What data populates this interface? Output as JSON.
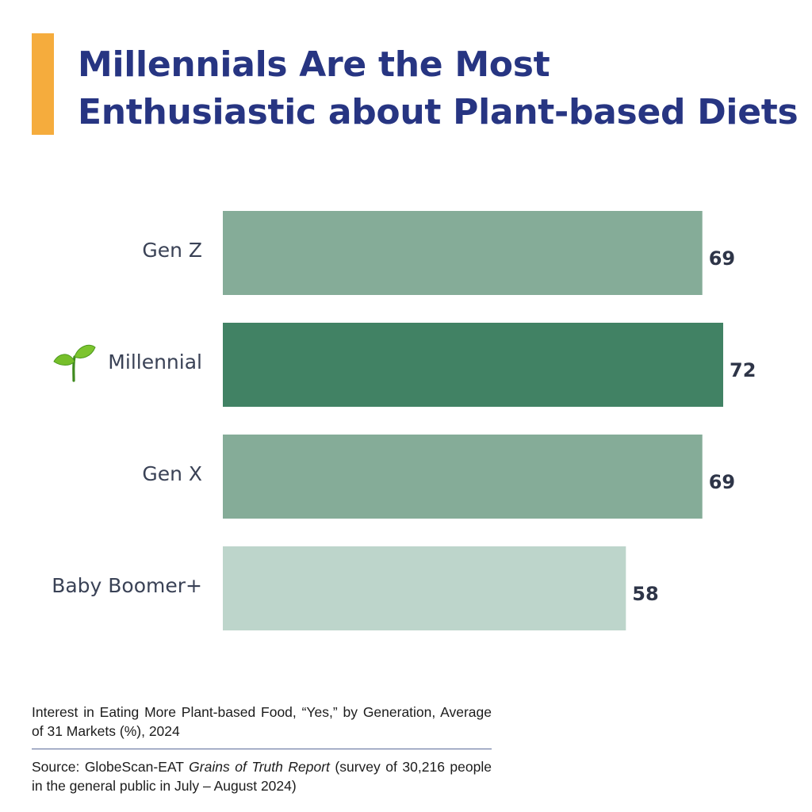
{
  "chart_data": {
    "type": "bar",
    "orientation": "horizontal",
    "title": "Millennials Are the Most Enthusiastic about Plant-based Diets",
    "categories": [
      "Gen Z",
      "Millennial",
      "Gen X",
      "Baby Boomer+"
    ],
    "values": [
      69,
      72,
      69,
      58
    ],
    "value_labels": [
      "69",
      "72",
      "69",
      "58"
    ],
    "bar_colors": [
      "#85AC98",
      "#418264",
      "#85AC98",
      "#BDD5CB"
    ],
    "highlight_category": "Millennial",
    "highlight_icon": "seedling-icon",
    "xlim": [
      0,
      72
    ],
    "grid": false,
    "legend": "none"
  },
  "colors": {
    "accent": "#F5AC3D",
    "title": "#273582",
    "label": "#3A4256"
  },
  "caption": "Interest in Eating More Plant-based Food, “Yes,” by Generation, Average of 31 Markets (%), 2024",
  "source": {
    "prefix": "Source: GlobeScan-EAT",
    "report_title": "Grains of Truth Report",
    "suffix": "(survey of 30,216 people in the general public in July – August 2024)"
  }
}
